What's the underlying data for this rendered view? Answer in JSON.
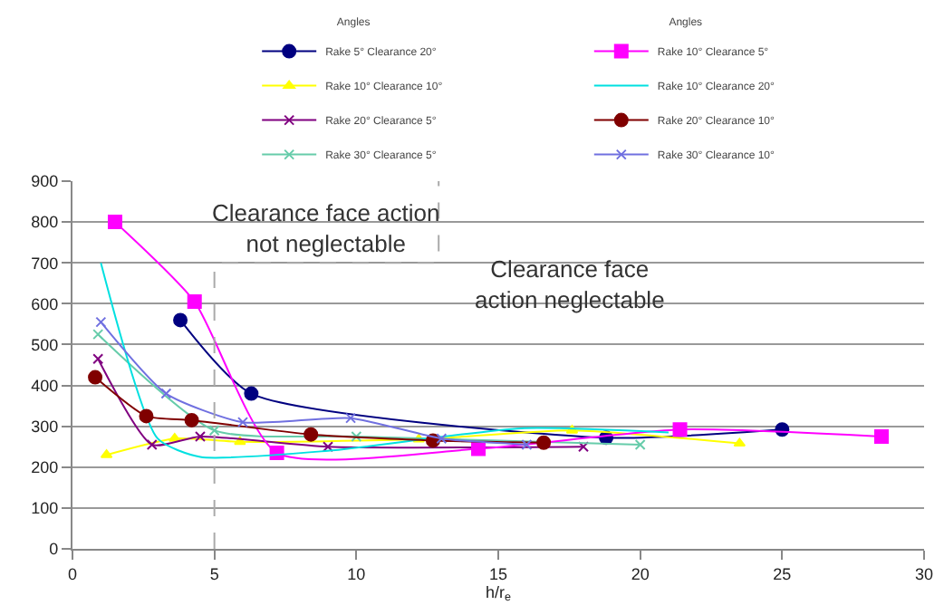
{
  "chart_data": {
    "type": "line",
    "xlabel": "h/r$_{e}$",
    "legend_title": "Angles",
    "legend": "top",
    "grid": "y",
    "xlim": [
      0,
      30
    ],
    "xticks": [
      0,
      5,
      10,
      15,
      20,
      25,
      30
    ],
    "ylim": [
      0,
      900
    ],
    "yticks": [
      0,
      100,
      200,
      300,
      400,
      500,
      600,
      700,
      800,
      900
    ],
    "annotations": [
      "Clearance face action not neglectable",
      "Clearance face action neglectable"
    ],
    "series": [
      {
        "name": "Rake 5° Clearance 20°",
        "color": "#000080",
        "marker": "circle",
        "x": [
          3.8,
          6.3,
          18.8,
          25
        ],
        "values": [
          560,
          380,
          272,
          292
        ]
      },
      {
        "name": "Rake 10° Clearance 10°",
        "color": "#ffff00",
        "marker": "triangle",
        "x": [
          1.2,
          3.6,
          5.9,
          12.2,
          17.6,
          23.5
        ],
        "values": [
          230,
          270,
          262,
          268,
          290,
          258
        ]
      },
      {
        "name": "Rake 20° Clearance 5°",
        "color": "#800080",
        "marker": "cross",
        "x": [
          0.9,
          2.8,
          4.5,
          9,
          18
        ],
        "values": [
          465,
          255,
          275,
          250,
          250
        ]
      },
      {
        "name": "Rake 30° Clearance 5°",
        "color": "#66ccaa",
        "marker": "cross",
        "x": [
          0.9,
          5,
          10,
          20
        ],
        "values": [
          525,
          290,
          275,
          255
        ]
      },
      {
        "name": "Rake 10° Clearance 5°",
        "color": "#ff00ff",
        "marker": "square",
        "x": [
          1.5,
          4.3,
          7.2,
          14.3,
          21.4,
          28.5
        ],
        "values": [
          800,
          605,
          235,
          245,
          292,
          275
        ]
      },
      {
        "name": "Rake 10° Clearance 20°",
        "color": "#00e0e0",
        "marker": "none",
        "x": [
          1,
          3,
          4.5,
          9,
          15.8,
          21
        ],
        "values": [
          700,
          270,
          225,
          240,
          295,
          285
        ]
      },
      {
        "name": "Rake 20° Clearance 10°",
        "color": "#800000",
        "marker": "circle",
        "x": [
          0.8,
          2.6,
          4.2,
          8.4,
          12.7,
          16.6
        ],
        "values": [
          420,
          325,
          315,
          280,
          265,
          260
        ]
      },
      {
        "name": "Rake 30° Clearance 10°",
        "color": "#7070e0",
        "marker": "cross",
        "x": [
          1,
          3.3,
          6,
          9.8,
          13,
          16
        ],
        "values": [
          555,
          380,
          310,
          320,
          270,
          255
        ]
      },
      {
        "color": "#aaaaaa",
        "line_style": "dashed",
        "marker": "none",
        "x": [
          5,
          5,
          12.9,
          12.9
        ],
        "values": [
          0,
          700,
          700,
          900
        ]
      }
    ]
  }
}
